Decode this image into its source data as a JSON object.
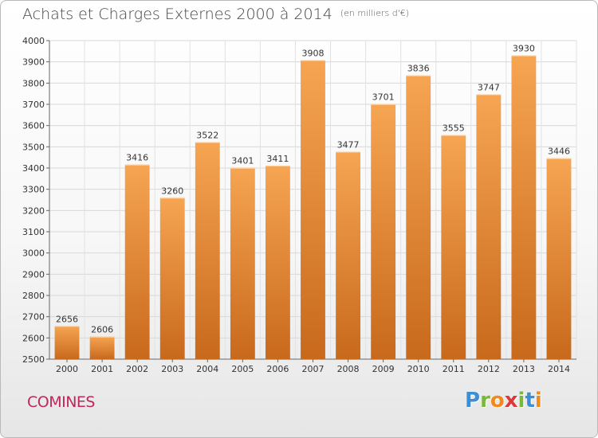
{
  "header": {
    "title": "Achats et Charges Externes 2000 à 2014",
    "unit": "(en milliers d'€)"
  },
  "footer": {
    "commune": "COMINES",
    "logo_letters": [
      "P",
      "r",
      "o",
      "x",
      "i",
      "t",
      "i"
    ],
    "logo_colors": [
      "#3b8fd4",
      "#7ab83a",
      "#f08a1c",
      "#d83a3a",
      "#7ab83a",
      "#3b8fd4",
      "#f08a1c"
    ]
  },
  "chart_data": {
    "type": "bar",
    "title": "Achats et Charges Externes 2000 à 2014",
    "subtitle": "(en milliers d'€)",
    "categories": [
      "2000",
      "2001",
      "2002",
      "2003",
      "2004",
      "2005",
      "2006",
      "2007",
      "2008",
      "2009",
      "2010",
      "2011",
      "2012",
      "2013",
      "2014"
    ],
    "values": [
      2656,
      2606,
      3416,
      3260,
      3522,
      3401,
      3411,
      3908,
      3477,
      3701,
      3836,
      3555,
      3747,
      3930,
      3446
    ],
    "ylim": [
      2500,
      4000
    ],
    "yticks": [
      2500,
      2600,
      2700,
      2800,
      2900,
      3000,
      3100,
      3200,
      3300,
      3400,
      3500,
      3600,
      3700,
      3800,
      3900,
      4000
    ],
    "grid": true,
    "bar_color_top": "#f6a552",
    "bar_color_bottom": "#c8691c"
  }
}
